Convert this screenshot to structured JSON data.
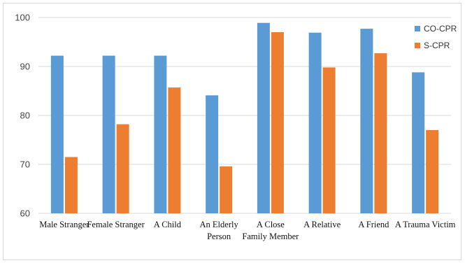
{
  "chart_data": {
    "type": "bar",
    "title": "",
    "xlabel": "",
    "ylabel": "",
    "ylim": [
      60,
      100
    ],
    "yticks": [
      60,
      70,
      80,
      90,
      100
    ],
    "grid": true,
    "legend_position": "top-right",
    "categories": [
      [
        "Male Stranger"
      ],
      [
        "Female Stranger"
      ],
      [
        "A Child"
      ],
      [
        "An Elderly",
        "Person"
      ],
      [
        "A Close",
        "Family Member"
      ],
      [
        "A Relative"
      ],
      [
        "A Friend"
      ],
      [
        "A Trauma Victim"
      ]
    ],
    "series": [
      {
        "name": "CO-CPR",
        "color": "#5b9bd5",
        "values": [
          92.2,
          92.2,
          92.2,
          84.1,
          98.9,
          96.9,
          97.7,
          88.8
        ]
      },
      {
        "name": "S-CPR",
        "color": "#ed7d31",
        "values": [
          71.5,
          78.2,
          85.7,
          69.6,
          97.0,
          89.8,
          92.7,
          77.0
        ]
      }
    ]
  }
}
